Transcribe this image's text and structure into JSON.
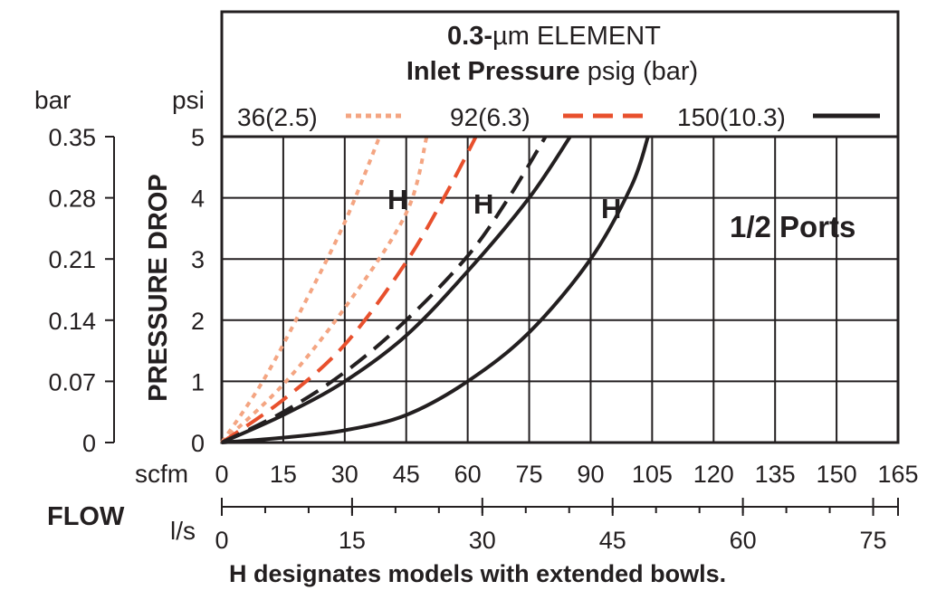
{
  "chart_data": {
    "type": "line",
    "title": "0.3-µm ELEMENT",
    "title_bold": "0.3-",
    "title_unit": "µm ELEMENT",
    "subtitle_bold": "Inlet Pressure",
    "subtitle_rest": " psig (bar)",
    "ylabel": "PRESSURE DROP",
    "xlabel": "FLOW",
    "y_unit_psi": "psi",
    "y_unit_bar": "bar",
    "x_unit_scfm": "scfm",
    "x_unit_ls": "l/s",
    "footnote": "H designates models with extended bowls.",
    "annotation": "1/2 Ports",
    "h_marker": "H",
    "xlim": [
      0,
      165
    ],
    "ylim": [
      0,
      5
    ],
    "grid": true,
    "y_ticks_psi": [
      "0",
      "1",
      "2",
      "3",
      "4",
      "5"
    ],
    "y_ticks_bar": [
      "0",
      "0.07",
      "0.14",
      "0.21",
      "0.28",
      "0.35"
    ],
    "x_ticks_scfm": [
      "0",
      "15",
      "30",
      "45",
      "60",
      "75",
      "90",
      "105",
      "120",
      "135",
      "150",
      "165"
    ],
    "x_ticks_ls": [
      "0",
      "15",
      "30",
      "45",
      "60",
      "75"
    ],
    "legend": [
      {
        "label": "36(2.5)",
        "color": "#f4a582",
        "style": "dotted"
      },
      {
        "label": "92(6.3)",
        "color": "#e8502d",
        "style": "dashed"
      },
      {
        "label": "150(10.3)",
        "color": "#231f20",
        "style": "solid"
      }
    ],
    "series": [
      {
        "name": "36(2.5)",
        "variant": "standard",
        "color": "#f4a582",
        "style": "dotted",
        "x": [
          0,
          10,
          20,
          30,
          38.5
        ],
        "y": [
          0,
          1.0,
          2.25,
          3.6,
          5.0
        ]
      },
      {
        "name": "36(2.5)",
        "variant": "H",
        "color": "#f4a582",
        "style": "dotted",
        "x": [
          0,
          15,
          30,
          45,
          50
        ],
        "y": [
          0,
          0.95,
          2.2,
          3.75,
          5.0
        ]
      },
      {
        "name": "92(6.3)",
        "variant": "standard",
        "color": "#e8502d",
        "style": "dashed",
        "x": [
          0,
          15,
          30,
          45,
          55,
          62
        ],
        "y": [
          0,
          0.7,
          1.6,
          2.95,
          4.1,
          5.0
        ]
      },
      {
        "name": "150(10.3)",
        "variant": "standard",
        "color": "#231f20",
        "style": "dashed",
        "x": [
          0,
          15,
          30,
          45,
          60,
          70,
          79
        ],
        "y": [
          0,
          0.5,
          1.15,
          2.0,
          3.05,
          4.0,
          5.0
        ]
      },
      {
        "name": "150(10.3)",
        "variant": "H",
        "color": "#231f20",
        "style": "solid",
        "x": [
          0,
          15,
          30,
          45,
          60,
          75,
          85
        ],
        "y": [
          0,
          0.45,
          1.0,
          1.75,
          2.8,
          4.0,
          5.0
        ]
      },
      {
        "name": "150(10.3)",
        "variant": "H",
        "color": "#231f20",
        "style": "solid",
        "x": [
          0,
          15,
          30,
          45,
          60,
          75,
          90,
          100,
          104
        ],
        "y": [
          0,
          0.08,
          0.2,
          0.45,
          1.0,
          1.8,
          3.0,
          4.2,
          5.0
        ]
      }
    ]
  }
}
